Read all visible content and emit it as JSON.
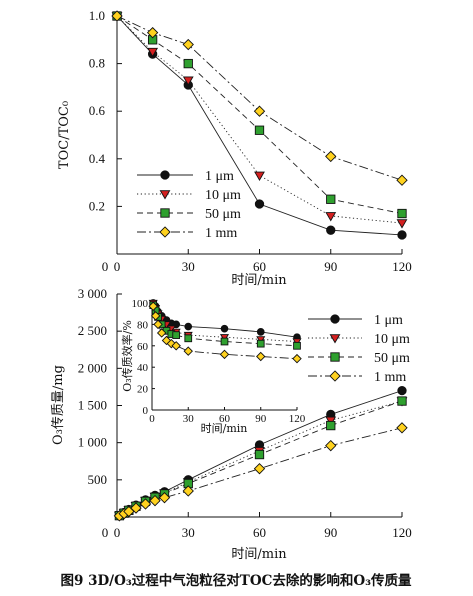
{
  "figure_caption": "图9 3D/O₃过程中气泡粒径对TOC去除的影响和O₃传质量",
  "legend": {
    "entries": [
      "1 μm",
      "10 μm",
      "50 μm",
      "1 mm"
    ],
    "markers": [
      "circle",
      "triangle-down",
      "square",
      "diamond"
    ],
    "fill_colors": [
      "#111111",
      "#d42020",
      "#2fa02f",
      "#ffd21f"
    ],
    "line_styles": [
      "solid",
      "dotted",
      "dashed",
      "dashdot"
    ]
  },
  "chart_data": [
    {
      "type": "line",
      "panel": "top",
      "xlabel": "时间/min",
      "ylabel": "TOC/TOC₀",
      "xlim": [
        0,
        120
      ],
      "ylim": [
        0,
        1.0
      ],
      "xticks": [
        0,
        30,
        60,
        90,
        120
      ],
      "xtick_labels": [
        "0",
        "30",
        "60",
        "90",
        "120"
      ],
      "yticks": [
        0.2,
        0.4,
        0.6,
        0.8,
        1.0
      ],
      "ytick_labels": [
        "0.2",
        "0.4",
        "0.6",
        "0.8",
        "1.0"
      ],
      "x": [
        0,
        15,
        30,
        60,
        90,
        120
      ],
      "series": [
        {
          "name": "1 μm",
          "values": [
            1.0,
            0.84,
            0.71,
            0.21,
            0.1,
            0.08
          ]
        },
        {
          "name": "10 μm",
          "values": [
            1.0,
            0.85,
            0.73,
            0.33,
            0.16,
            0.13
          ]
        },
        {
          "name": "50 μm",
          "values": [
            1.0,
            0.9,
            0.8,
            0.52,
            0.23,
            0.17
          ]
        },
        {
          "name": "1 mm",
          "values": [
            1.0,
            0.93,
            0.88,
            0.6,
            0.41,
            0.31
          ]
        }
      ],
      "legend_position": "bottom-left",
      "grid": false
    },
    {
      "type": "line",
      "panel": "bottom",
      "xlabel": "时间/min",
      "ylabel": "O₃传质量/mg",
      "xlim": [
        0,
        120
      ],
      "ylim": [
        0,
        3000
      ],
      "xticks": [
        0,
        30,
        60,
        90,
        120
      ],
      "xtick_labels": [
        "0",
        "30",
        "60",
        "90",
        "120"
      ],
      "yticks": [
        500,
        1000,
        1500,
        2000,
        2500,
        3000
      ],
      "ytick_labels": [
        "500",
        "1 000",
        "1 500",
        "2 000",
        "2 500",
        "3 000"
      ],
      "x": [
        1,
        3,
        5,
        8,
        12,
        16,
        20,
        30,
        60,
        90,
        120
      ],
      "series": [
        {
          "name": "1 μm",
          "values": [
            20,
            60,
            100,
            160,
            230,
            290,
            340,
            500,
            970,
            1380,
            1700
          ]
        },
        {
          "name": "10 μm",
          "values": [
            20,
            55,
            95,
            150,
            220,
            275,
            320,
            470,
            890,
            1300,
            1560
          ]
        },
        {
          "name": "50 μm",
          "values": [
            18,
            52,
            90,
            145,
            210,
            265,
            310,
            450,
            840,
            1230,
            1560
          ]
        },
        {
          "name": "1 mm",
          "values": [
            15,
            45,
            75,
            120,
            175,
            220,
            260,
            350,
            650,
            960,
            1200
          ]
        }
      ],
      "legend_position": "top-right",
      "grid": false
    },
    {
      "type": "line",
      "panel": "inset",
      "xlabel": "时间/min",
      "ylabel": "O₃传质效率/%",
      "xlim": [
        0,
        120
      ],
      "ylim": [
        0,
        100
      ],
      "xticks": [
        0,
        30,
        60,
        90,
        120
      ],
      "xtick_labels": [
        "0",
        "30",
        "60",
        "90",
        "120"
      ],
      "yticks": [
        0,
        20,
        40,
        60,
        80,
        100
      ],
      "ytick_labels": [
        "0",
        "20",
        "40",
        "60",
        "80",
        "100"
      ],
      "x": [
        1,
        3,
        5,
        8,
        12,
        16,
        20,
        30,
        60,
        90,
        120
      ],
      "series": [
        {
          "name": "1 μm",
          "values": [
            100,
            97,
            92,
            88,
            84,
            81,
            80,
            78,
            76,
            73,
            68
          ]
        },
        {
          "name": "10 μm",
          "values": [
            100,
            95,
            90,
            85,
            80,
            76,
            73,
            70,
            68,
            66,
            64
          ]
        },
        {
          "name": "50 μm",
          "values": [
            98,
            93,
            87,
            80,
            74,
            71,
            70,
            67,
            64,
            62,
            60
          ]
        },
        {
          "name": "1 mm",
          "values": [
            97,
            88,
            80,
            72,
            65,
            62,
            60,
            55,
            52,
            50,
            48
          ]
        }
      ],
      "grid": false
    }
  ]
}
